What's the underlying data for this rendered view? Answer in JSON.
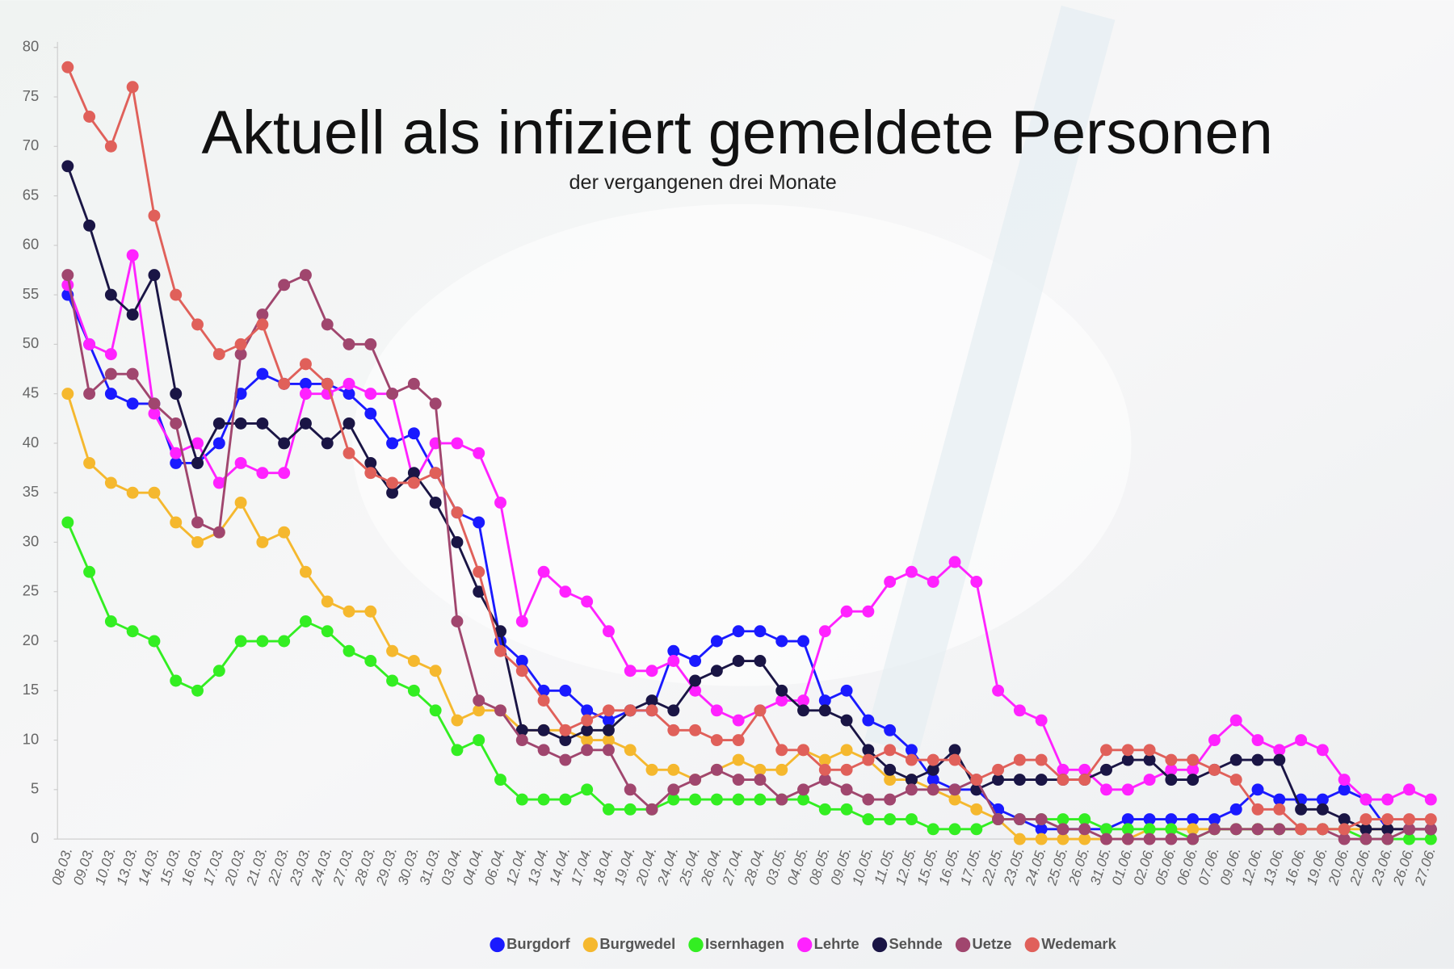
{
  "chart_data": {
    "type": "line",
    "title": "Aktuell als infiziert gemeldete Personen",
    "subtitle": "der vergangenen drei Monate",
    "categories": [
      "08.03.",
      "09.03.",
      "10.03.",
      "13.03.",
      "14.03.",
      "15.03.",
      "16.03.",
      "17.03.",
      "20.03.",
      "21.03.",
      "22.03.",
      "23.03.",
      "24.03.",
      "27.03.",
      "28.03.",
      "29.03.",
      "30.03.",
      "31.03.",
      "03.04.",
      "04.04.",
      "06.04.",
      "12.04.",
      "13.04.",
      "14.04.",
      "17.04.",
      "18.04.",
      "19.04.",
      "20.04.",
      "24.04.",
      "25.04.",
      "26.04.",
      "27.04.",
      "28.04.",
      "03.05.",
      "04.05.",
      "08.05.",
      "09.05.",
      "10.05.",
      "11.05.",
      "12.05.",
      "15.05.",
      "16.05.",
      "17.05.",
      "22.05.",
      "23.05.",
      "24.05.",
      "25.05.",
      "26.05.",
      "31.05.",
      "01.06.",
      "02.06.",
      "05.06.",
      "06.06.",
      "07.06.",
      "09.06.",
      "12.06.",
      "13.06.",
      "16.06.",
      "19.06.",
      "20.06.",
      "22.06.",
      "23.06.",
      "26.06.",
      "27.06."
    ],
    "series": [
      {
        "name": "Burgdorf",
        "color": "#1a1aff",
        "values": [
          55,
          50,
          45,
          44,
          44,
          38,
          38,
          40,
          45,
          47,
          46,
          46,
          46,
          45,
          43,
          40,
          41,
          37,
          33,
          32,
          20,
          18,
          15,
          15,
          13,
          12,
          13,
          13,
          19,
          18,
          20,
          21,
          21,
          20,
          20,
          14,
          15,
          12,
          11,
          9,
          6,
          5,
          5,
          3,
          2,
          1,
          1,
          1,
          1,
          2,
          2,
          2,
          2,
          2,
          3,
          5,
          4,
          4,
          4,
          5,
          4,
          1,
          1,
          1
        ]
      },
      {
        "name": "Burgwedel",
        "color": "#f5b82e",
        "values": [
          45,
          38,
          36,
          35,
          35,
          32,
          30,
          31,
          34,
          30,
          31,
          27,
          24,
          23,
          23,
          19,
          18,
          17,
          12,
          13,
          13,
          11,
          11,
          11,
          10,
          10,
          9,
          7,
          7,
          6,
          7,
          8,
          7,
          7,
          9,
          8,
          9,
          8,
          6,
          6,
          5,
          4,
          3,
          2,
          0,
          0,
          0,
          0,
          0,
          0,
          1,
          1,
          1,
          1,
          1,
          1,
          1,
          1,
          1,
          1,
          1,
          1,
          1,
          1
        ]
      },
      {
        "name": "Isernhagen",
        "color": "#33ee22",
        "values": [
          32,
          27,
          22,
          21,
          20,
          16,
          15,
          17,
          20,
          20,
          20,
          22,
          21,
          19,
          18,
          16,
          15,
          13,
          9,
          10,
          6,
          4,
          4,
          4,
          5,
          3,
          3,
          3,
          4,
          4,
          4,
          4,
          4,
          4,
          4,
          3,
          3,
          2,
          2,
          2,
          1,
          1,
          1,
          2,
          2,
          2,
          2,
          2,
          1,
          1,
          1,
          1,
          0,
          1,
          1,
          1,
          1,
          1,
          1,
          1,
          0,
          0,
          0,
          0
        ]
      },
      {
        "name": "Lehrte",
        "color": "#ff22ff",
        "values": [
          56,
          50,
          49,
          59,
          43,
          39,
          40,
          36,
          38,
          37,
          37,
          45,
          45,
          46,
          45,
          45,
          36,
          40,
          40,
          39,
          34,
          22,
          27,
          25,
          24,
          21,
          17,
          17,
          18,
          15,
          13,
          12,
          13,
          14,
          14,
          21,
          23,
          23,
          26,
          27,
          26,
          28,
          26,
          15,
          13,
          12,
          7,
          7,
          5,
          5,
          6,
          7,
          7,
          10,
          12,
          10,
          9,
          10,
          9,
          6,
          4,
          4,
          5,
          4
        ]
      },
      {
        "name": "Sehnde",
        "color": "#1a1545",
        "values": [
          68,
          62,
          55,
          53,
          57,
          45,
          38,
          42,
          42,
          42,
          40,
          42,
          40,
          42,
          38,
          35,
          37,
          34,
          30,
          25,
          21,
          11,
          11,
          10,
          11,
          11,
          13,
          14,
          13,
          16,
          17,
          18,
          18,
          15,
          13,
          13,
          12,
          9,
          7,
          6,
          7,
          9,
          5,
          6,
          6,
          6,
          6,
          6,
          7,
          8,
          8,
          6,
          6,
          7,
          8,
          8,
          8,
          3,
          3,
          2,
          1,
          1,
          1,
          1
        ]
      },
      {
        "name": "Uetze",
        "color": "#a0466e",
        "values": [
          57,
          45,
          47,
          47,
          44,
          42,
          32,
          31,
          49,
          53,
          56,
          57,
          52,
          50,
          50,
          45,
          46,
          44,
          22,
          14,
          13,
          10,
          9,
          8,
          9,
          9,
          5,
          3,
          5,
          6,
          7,
          6,
          6,
          4,
          5,
          6,
          5,
          4,
          4,
          5,
          5,
          5,
          6,
          2,
          2,
          2,
          1,
          1,
          0,
          0,
          0,
          0,
          0,
          1,
          1,
          1,
          1,
          1,
          1,
          0,
          0,
          0,
          1,
          1
        ]
      },
      {
        "name": "Wedemark",
        "color": "#e0605a",
        "values": [
          78,
          73,
          70,
          76,
          63,
          55,
          52,
          49,
          50,
          52,
          46,
          48,
          46,
          39,
          37,
          36,
          36,
          37,
          33,
          27,
          19,
          17,
          14,
          11,
          12,
          13,
          13,
          13,
          11,
          11,
          10,
          10,
          13,
          9,
          9,
          7,
          7,
          8,
          9,
          8,
          8,
          8,
          6,
          7,
          8,
          8,
          6,
          6,
          9,
          9,
          9,
          8,
          8,
          7,
          6,
          3,
          3,
          1,
          1,
          1,
          2,
          2,
          2,
          2
        ]
      }
    ],
    "ylim": [
      0,
      80
    ],
    "yticks": [
      0,
      5,
      10,
      15,
      20,
      25,
      30,
      35,
      40,
      45,
      50,
      55,
      60,
      65,
      70,
      75,
      80
    ],
    "grid": false
  }
}
